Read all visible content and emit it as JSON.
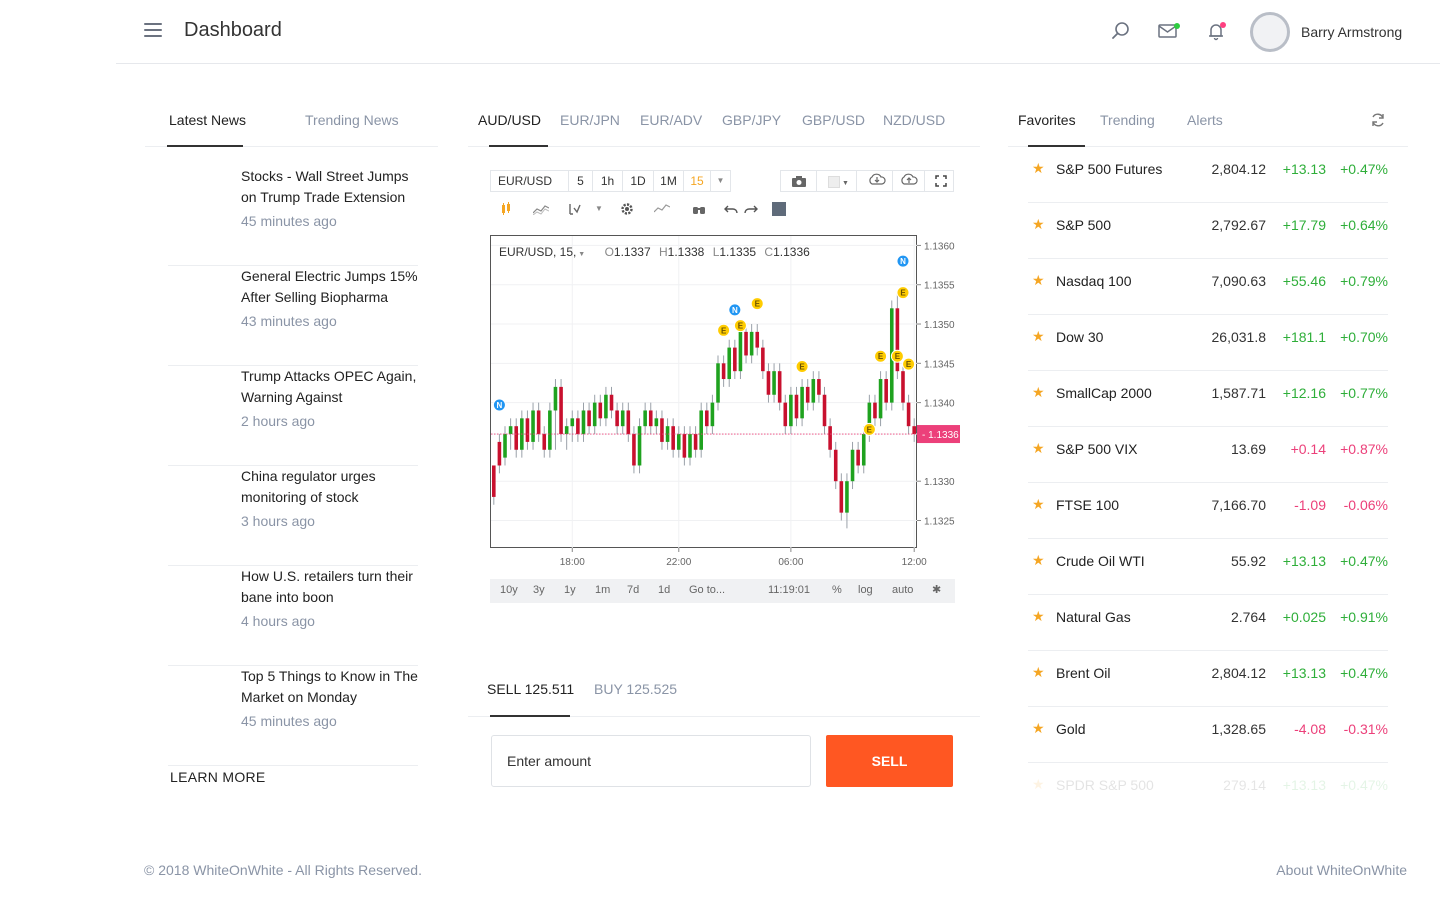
{
  "header": {
    "title": "Dashboard",
    "user_name": "Barry Armstrong"
  },
  "colors": {
    "accent": "#ff5722",
    "up": "#2eae39",
    "down": "#ec407a",
    "star": "#f5a623",
    "muted": "#8a94a6"
  },
  "news": {
    "tabs": [
      "Latest News",
      "Trending News"
    ],
    "items": [
      {
        "title": "Stocks - Wall Street Jumps on Trump Trade Extension",
        "time": "45 minutes ago"
      },
      {
        "title": "General Electric Jumps 15% After Selling Biopharma",
        "time": "43 minutes ago"
      },
      {
        "title": "Trump Attacks OPEC Again, Warning Against",
        "time": "2 hours ago"
      },
      {
        "title": "China regulator urges monitoring of stock",
        "time": "3 hours ago"
      },
      {
        "title": "How U.S. retailers turn their bane into boon",
        "time": "4 hours ago"
      },
      {
        "title": "Top 5 Things to Know in The Market on Monday",
        "time": "45 minutes ago"
      }
    ],
    "learn_more": "LEARN MORE"
  },
  "pairs": {
    "tabs": [
      "AUD/USD",
      "EUR/JPN",
      "EUR/ADV",
      "GBP/JPY",
      "GBP/USD",
      "NZD/USD"
    ]
  },
  "chart_widget": {
    "symbol": "EUR/USD",
    "intervals": [
      "5",
      "1h",
      "1D",
      "1M",
      "15"
    ],
    "legend": {
      "label": "EUR/USD, 15,",
      "o_label": "O",
      "o": "1.1337",
      "h_label": "H",
      "h": "1.1338",
      "l_label": "L",
      "l": "1.1335",
      "c_label": "C",
      "c": "1.1336"
    },
    "ranges": [
      "10y",
      "3y",
      "1y",
      "1m",
      "7d",
      "1d",
      "Go to..."
    ],
    "clock": "11:19:01",
    "options": [
      "%",
      "log",
      "auto"
    ]
  },
  "chart_data": {
    "type": "candlestick",
    "title": "EUR/USD, 15,",
    "xlabel": "",
    "ylabel": "",
    "x_ticks": [
      "18:00",
      "22:00",
      "06:00",
      "12:00"
    ],
    "y_ticks": [
      "1.1360",
      "1.1355",
      "1.1350",
      "1.1345",
      "1.1340",
      "1.1336",
      "1.1330",
      "1.1325"
    ],
    "ylim": [
      1.13215,
      1.13612
    ],
    "last_price": "1.1336",
    "candles": [
      [
        1.1332,
        1.1328,
        1.1327,
        1.1332
      ],
      [
        1.1335,
        1.1332,
        1.1331,
        1.1336
      ],
      [
        1.1333,
        1.1336,
        1.1332,
        1.1337
      ],
      [
        1.1336,
        1.1337,
        1.1334,
        1.1338
      ],
      [
        1.1337,
        1.1334,
        1.1333,
        1.1338
      ],
      [
        1.1334,
        1.1338,
        1.1333,
        1.1339
      ],
      [
        1.1338,
        1.1335,
        1.1334,
        1.1339
      ],
      [
        1.1335,
        1.1339,
        1.1334,
        1.134
      ],
      [
        1.1339,
        1.1336,
        1.1335,
        1.134
      ],
      [
        1.1336,
        1.1334,
        1.1333,
        1.1337
      ],
      [
        1.1334,
        1.1339,
        1.1333,
        1.134
      ],
      [
        1.1339,
        1.1342,
        1.1334,
        1.1343
      ],
      [
        1.1342,
        1.1336,
        1.1335,
        1.1343
      ],
      [
        1.1336,
        1.1337,
        1.1334,
        1.1338
      ],
      [
        1.1337,
        1.1338,
        1.1335,
        1.1339
      ],
      [
        1.1338,
        1.1336,
        1.1335,
        1.1339
      ],
      [
        1.1336,
        1.1339,
        1.1335,
        1.134
      ],
      [
        1.1339,
        1.1337,
        1.1336,
        1.134
      ],
      [
        1.1337,
        1.134,
        1.1336,
        1.1341
      ],
      [
        1.134,
        1.1338,
        1.1337,
        1.1341
      ],
      [
        1.1338,
        1.1341,
        1.1337,
        1.1342
      ],
      [
        1.1341,
        1.1339,
        1.1338,
        1.1342
      ],
      [
        1.1339,
        1.1337,
        1.1336,
        1.134
      ],
      [
        1.1337,
        1.1339,
        1.1336,
        1.134
      ],
      [
        1.1339,
        1.1336,
        1.1335,
        1.134
      ],
      [
        1.1336,
        1.1332,
        1.1331,
        1.1337
      ],
      [
        1.1332,
        1.1337,
        1.1331,
        1.1338
      ],
      [
        1.1337,
        1.1339,
        1.1336,
        1.134
      ],
      [
        1.1339,
        1.1337,
        1.1336,
        1.134
      ],
      [
        1.1337,
        1.1338,
        1.1336,
        1.1339
      ],
      [
        1.1338,
        1.1335,
        1.1334,
        1.1339
      ],
      [
        1.1335,
        1.1337,
        1.1334,
        1.1338
      ],
      [
        1.1337,
        1.1334,
        1.1333,
        1.1338
      ],
      [
        1.1334,
        1.1336,
        1.1333,
        1.1337
      ],
      [
        1.1336,
        1.1333,
        1.1332,
        1.1337
      ],
      [
        1.1333,
        1.1336,
        1.1332,
        1.1337
      ],
      [
        1.1336,
        1.1334,
        1.1333,
        1.1337
      ],
      [
        1.1334,
        1.1339,
        1.1333,
        1.134
      ],
      [
        1.1339,
        1.1337,
        1.1336,
        1.134
      ],
      [
        1.1337,
        1.134,
        1.1336,
        1.1341
      ],
      [
        1.134,
        1.1345,
        1.1339,
        1.1346
      ],
      [
        1.1345,
        1.1343,
        1.1342,
        1.1346
      ],
      [
        1.1343,
        1.1347,
        1.1342,
        1.1348
      ],
      [
        1.1347,
        1.1344,
        1.1343,
        1.1348
      ],
      [
        1.1344,
        1.1349,
        1.1343,
        1.135
      ],
      [
        1.1349,
        1.1346,
        1.1345,
        1.135
      ],
      [
        1.1346,
        1.1349,
        1.1345,
        1.135
      ],
      [
        1.1349,
        1.1347,
        1.1346,
        1.135
      ],
      [
        1.1347,
        1.1344,
        1.1343,
        1.1348
      ],
      [
        1.1344,
        1.1341,
        1.134,
        1.1345
      ],
      [
        1.1341,
        1.1344,
        1.134,
        1.1345
      ],
      [
        1.1344,
        1.134,
        1.1339,
        1.1345
      ],
      [
        1.134,
        1.1337,
        1.1336,
        1.1341
      ],
      [
        1.1337,
        1.1341,
        1.1336,
        1.1342
      ],
      [
        1.1341,
        1.1338,
        1.1337,
        1.1342
      ],
      [
        1.1338,
        1.1342,
        1.1337,
        1.1343
      ],
      [
        1.1342,
        1.134,
        1.1339,
        1.1343
      ],
      [
        1.134,
        1.1343,
        1.1339,
        1.1344
      ],
      [
        1.1343,
        1.1341,
        1.134,
        1.1344
      ],
      [
        1.1341,
        1.1337,
        1.1336,
        1.1342
      ],
      [
        1.1337,
        1.1334,
        1.1333,
        1.1338
      ],
      [
        1.1334,
        1.133,
        1.1329,
        1.1335
      ],
      [
        1.133,
        1.1326,
        1.1325,
        1.1331
      ],
      [
        1.1326,
        1.133,
        1.1324,
        1.1331
      ],
      [
        1.133,
        1.1334,
        1.1329,
        1.1335
      ],
      [
        1.1334,
        1.1332,
        1.1331,
        1.1335
      ],
      [
        1.1332,
        1.1336,
        1.1331,
        1.1337
      ],
      [
        1.1336,
        1.134,
        1.1335,
        1.1341
      ],
      [
        1.134,
        1.1338,
        1.1337,
        1.1341
      ],
      [
        1.1338,
        1.1343,
        1.1337,
        1.1344
      ],
      [
        1.1343,
        1.134,
        1.1339,
        1.1344
      ],
      [
        1.134,
        1.1352,
        1.1339,
        1.1353
      ],
      [
        1.1352,
        1.1344,
        1.1343,
        1.1354
      ],
      [
        1.1344,
        1.134,
        1.1339,
        1.1345
      ],
      [
        1.134,
        1.1337,
        1.1336,
        1.1341
      ],
      [
        1.1337,
        1.1336,
        1.1335,
        1.1338
      ]
    ],
    "markers": [
      {
        "label": "N",
        "index": 1,
        "price": 1.13397,
        "color": "#2196f3"
      },
      {
        "label": "E",
        "index": 41,
        "price": 1.13492,
        "color": "#ffcc00"
      },
      {
        "label": "N",
        "index": 43,
        "price": 1.13518,
        "color": "#2196f3"
      },
      {
        "label": "E",
        "index": 44,
        "price": 1.13498,
        "color": "#ffcc00"
      },
      {
        "label": "E",
        "index": 47,
        "price": 1.13526,
        "color": "#ffcc00"
      },
      {
        "label": "E",
        "index": 55,
        "price": 1.13446,
        "color": "#ffcc00"
      },
      {
        "label": "E",
        "index": 67,
        "price": 1.13366,
        "color": "#ffcc00"
      },
      {
        "label": "E",
        "index": 69,
        "price": 1.13459,
        "color": "#ffcc00"
      },
      {
        "label": "E",
        "index": 72,
        "price": 1.13459,
        "color": "#ffcc00"
      },
      {
        "label": "E",
        "index": 73,
        "price": 1.1354,
        "color": "#ffcc00"
      },
      {
        "label": "N",
        "index": 73,
        "price": 1.1358,
        "color": "#2196f3"
      },
      {
        "label": "E",
        "index": 74,
        "price": 1.13449,
        "color": "#ffcc00"
      }
    ]
  },
  "trade": {
    "sell_tab": "SELL 125.511",
    "buy_tab": "BUY 125.525",
    "amount_placeholder": "Enter amount",
    "sell_button": "SELL"
  },
  "markets": {
    "tabs": [
      "Favorites",
      "Trending",
      "Alerts"
    ],
    "rows": [
      {
        "name": "S&P 500 Futures",
        "price": "2,804.12",
        "change": "+13.13",
        "pct": "+0.47%",
        "dir": "up"
      },
      {
        "name": "S&P 500",
        "price": "2,792.67",
        "change": "+17.79",
        "pct": "+0.64%",
        "dir": "up"
      },
      {
        "name": "Nasdaq 100",
        "price": "7,090.63",
        "change": "+55.46",
        "pct": "+0.79%",
        "dir": "up"
      },
      {
        "name": "Dow 30",
        "price": "26,031.8",
        "change": "+181.1",
        "pct": "+0.70%",
        "dir": "up"
      },
      {
        "name": "SmallCap 2000",
        "price": "1,587.71",
        "change": "+12.16",
        "pct": "+0.77%",
        "dir": "up"
      },
      {
        "name": "S&P 500 VIX",
        "price": "13.69",
        "change": "+0.14",
        "pct": "+0.87%",
        "dir": "down"
      },
      {
        "name": "FTSE 100",
        "price": "7,166.70",
        "change": "-1.09",
        "pct": "-0.06%",
        "dir": "down"
      },
      {
        "name": "Crude Oil WTI",
        "price": "55.92",
        "change": "+13.13",
        "pct": "+0.47%",
        "dir": "up"
      },
      {
        "name": "Natural Gas",
        "price": "2.764",
        "change": "+0.025",
        "pct": "+0.91%",
        "dir": "up"
      },
      {
        "name": "Brent Oil",
        "price": "2,804.12",
        "change": "+13.13",
        "pct": "+0.47%",
        "dir": "up"
      },
      {
        "name": "Gold",
        "price": "1,328.65",
        "change": "-4.08",
        "pct": "-0.31%",
        "dir": "down"
      },
      {
        "name": "SPDR S&P 500",
        "price": "279.14",
        "change": "+13.13",
        "pct": "+0.47%",
        "dir": "up",
        "faded": true
      }
    ]
  },
  "footer": {
    "copyright": "© 2018 WhiteOnWhite - All Rights Reserved.",
    "about": "About WhiteOnWhite"
  }
}
